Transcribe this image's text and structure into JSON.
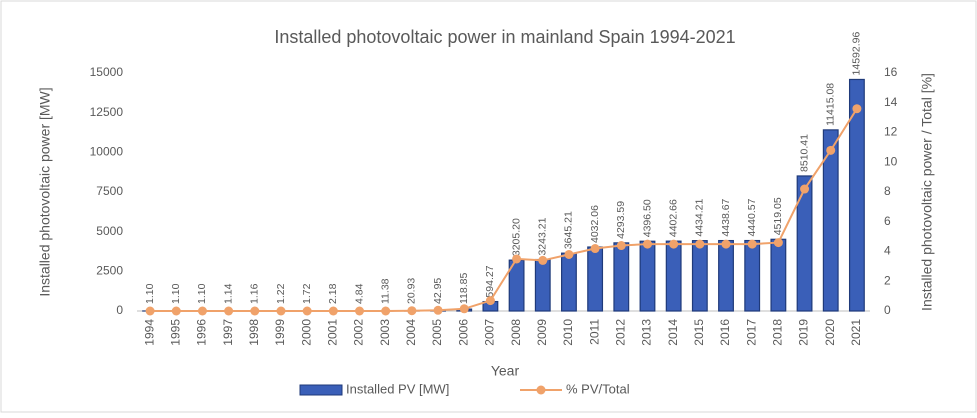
{
  "chart_data": {
    "type": "bar",
    "title": "Installed photovoltaic power in mainland Spain 1994-2021",
    "x_label": "Year",
    "y_label": "Installed photovoltaic power [MW]",
    "y2_label": "Installed photovoltaic power / Total [%]",
    "categories": [
      "1994",
      "1995",
      "1996",
      "1997",
      "1998",
      "1999",
      "2000",
      "2001",
      "2002",
      "2003",
      "2004",
      "2005",
      "2006",
      "2007",
      "2008",
      "2009",
      "2010",
      "2011",
      "2012",
      "2013",
      "2014",
      "2015",
      "2016",
      "2017",
      "2018",
      "2019",
      "2020",
      "2021"
    ],
    "series": [
      {
        "name": "Installed PV [MW]",
        "type": "bar",
        "color": "#3a5fb8",
        "values": [
          1.1,
          1.1,
          1.1,
          1.14,
          1.16,
          1.22,
          1.72,
          2.18,
          4.84,
          11.38,
          20.93,
          42.95,
          118.85,
          594.27,
          3205.2,
          3243.21,
          3645.21,
          4032.06,
          4293.59,
          4396.5,
          4402.66,
          4434.21,
          4438.67,
          4440.57,
          4519.05,
          8510.41,
          11415.08,
          14592.96
        ],
        "value_labels": [
          "1.10",
          "1.10",
          "1.10",
          "1.14",
          "1.16",
          "1.22",
          "1.72",
          "2.18",
          "4.84",
          "11.38",
          "20.93",
          "42.95",
          "118.85",
          "594.27",
          "3205.20",
          "3243.21",
          "3645.21",
          "4032.06",
          "4293.59",
          "4396.50",
          "4402.66",
          "4434.21",
          "4438.67",
          "4440.57",
          "4519.05",
          "8510.41",
          "11415.08",
          "14592.96"
        ]
      },
      {
        "name": "% PV/Total",
        "type": "line",
        "axis": "y2",
        "color": "#f0a26a",
        "values": [
          0,
          0,
          0,
          0,
          0,
          0,
          0,
          0,
          0,
          0,
          0.02,
          0.05,
          0.15,
          0.7,
          3.5,
          3.4,
          3.8,
          4.2,
          4.4,
          4.5,
          4.5,
          4.5,
          4.5,
          4.5,
          4.6,
          8.2,
          10.8,
          13.6
        ]
      }
    ],
    "ylim": [
      0,
      15000
    ],
    "yticks": [
      0,
      2500,
      5000,
      7500,
      10000,
      12500,
      15000
    ],
    "y2lim": [
      0,
      16
    ],
    "y2ticks": [
      0,
      2,
      4,
      6,
      8,
      10,
      12,
      14,
      16
    ],
    "legend": "bottom"
  }
}
